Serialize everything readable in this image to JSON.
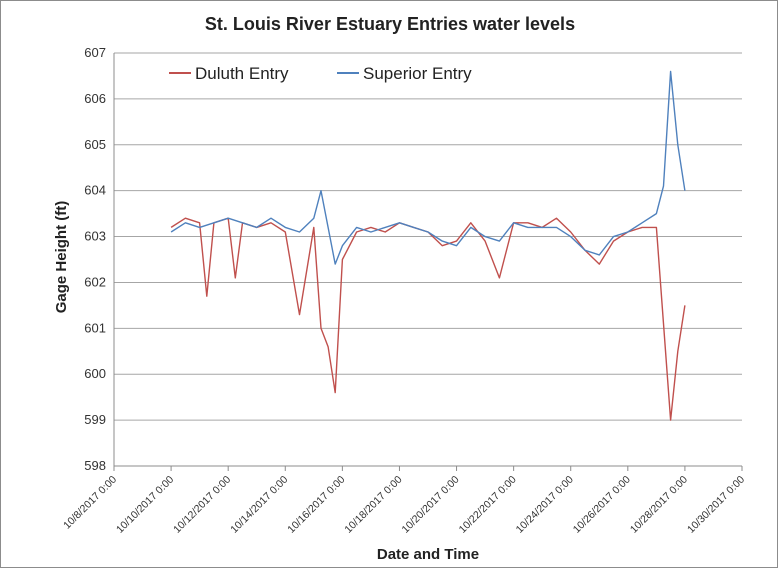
{
  "chart_data": {
    "type": "line",
    "title": "St. Louis River Estuary Entries water levels",
    "xlabel": "Date and Time",
    "ylabel": "Gage Height (ft)",
    "ylim": [
      598,
      607
    ],
    "yticks": [
      598,
      599,
      600,
      601,
      602,
      603,
      604,
      605,
      606,
      607
    ],
    "xlim": [
      "10/8/2017 0:00",
      "10/30/2017 0:00"
    ],
    "xticks": [
      "10/8/2017 0:00",
      "10/10/2017 0:00",
      "10/12/2017 0:00",
      "10/14/2017 0:00",
      "10/16/2017 0:00",
      "10/18/2017 0:00",
      "10/20/2017 0:00",
      "10/22/2017 0:00",
      "10/24/2017 0:00",
      "10/26/2017 0:00",
      "10/28/2017 0:00",
      "10/30/2017 0:00"
    ],
    "grid": "horizontal",
    "legend_position": "top-left",
    "series": [
      {
        "name": "Duluth Entry",
        "color": "#c0504d",
        "x": [
          "10/10/2017 0:00",
          "10/10/2017 12:00",
          "10/11/2017 0:00",
          "10/11/2017 6:00",
          "10/11/2017 12:00",
          "10/12/2017 0:00",
          "10/12/2017 6:00",
          "10/12/2017 12:00",
          "10/13/2017 0:00",
          "10/13/2017 12:00",
          "10/14/2017 0:00",
          "10/14/2017 12:00",
          "10/15/2017 0:00",
          "10/15/2017 6:00",
          "10/15/2017 12:00",
          "10/15/2017 18:00",
          "10/16/2017 0:00",
          "10/16/2017 12:00",
          "10/17/2017 0:00",
          "10/17/2017 12:00",
          "10/18/2017 0:00",
          "10/18/2017 12:00",
          "10/19/2017 0:00",
          "10/19/2017 12:00",
          "10/20/2017 0:00",
          "10/20/2017 12:00",
          "10/21/2017 0:00",
          "10/21/2017 12:00",
          "10/22/2017 0:00",
          "10/22/2017 12:00",
          "10/23/2017 0:00",
          "10/23/2017 12:00",
          "10/24/2017 0:00",
          "10/24/2017 12:00",
          "10/25/2017 0:00",
          "10/25/2017 12:00",
          "10/26/2017 0:00",
          "10/26/2017 12:00",
          "10/27/2017 0:00",
          "10/27/2017 6:00",
          "10/27/2017 12:00",
          "10/27/2017 18:00",
          "10/28/2017 0:00"
        ],
        "values": [
          603.2,
          603.4,
          603.3,
          601.7,
          603.3,
          603.4,
          602.1,
          603.3,
          603.2,
          603.3,
          603.1,
          601.3,
          603.2,
          601.0,
          600.6,
          599.6,
          602.5,
          603.1,
          603.2,
          603.1,
          603.3,
          603.2,
          603.1,
          602.8,
          602.9,
          603.3,
          602.9,
          602.1,
          603.3,
          603.3,
          603.2,
          603.4,
          603.1,
          602.7,
          602.4,
          602.9,
          603.1,
          603.2,
          603.2,
          601.1,
          599.0,
          600.5,
          601.5
        ]
      },
      {
        "name": "Superior Entry",
        "color": "#4f81bd",
        "x": [
          "10/10/2017 0:00",
          "10/10/2017 12:00",
          "10/11/2017 0:00",
          "10/11/2017 12:00",
          "10/12/2017 0:00",
          "10/12/2017 12:00",
          "10/13/2017 0:00",
          "10/13/2017 12:00",
          "10/14/2017 0:00",
          "10/14/2017 12:00",
          "10/15/2017 0:00",
          "10/15/2017 6:00",
          "10/15/2017 12:00",
          "10/15/2017 18:00",
          "10/16/2017 0:00",
          "10/16/2017 12:00",
          "10/17/2017 0:00",
          "10/17/2017 12:00",
          "10/18/2017 0:00",
          "10/18/2017 12:00",
          "10/19/2017 0:00",
          "10/19/2017 12:00",
          "10/20/2017 0:00",
          "10/20/2017 12:00",
          "10/21/2017 0:00",
          "10/21/2017 12:00",
          "10/22/2017 0:00",
          "10/22/2017 12:00",
          "10/23/2017 0:00",
          "10/23/2017 12:00",
          "10/24/2017 0:00",
          "10/24/2017 12:00",
          "10/25/2017 0:00",
          "10/25/2017 12:00",
          "10/26/2017 0:00",
          "10/26/2017 12:00",
          "10/27/2017 0:00",
          "10/27/2017 6:00",
          "10/27/2017 12:00",
          "10/27/2017 18:00",
          "10/28/2017 0:00"
        ],
        "values": [
          603.1,
          603.3,
          603.2,
          603.3,
          603.4,
          603.3,
          603.2,
          603.4,
          603.2,
          603.1,
          603.4,
          604.0,
          603.2,
          602.4,
          602.8,
          603.2,
          603.1,
          603.2,
          603.3,
          603.2,
          603.1,
          602.9,
          602.8,
          603.2,
          603.0,
          602.9,
          603.3,
          603.2,
          603.2,
          603.2,
          603.0,
          602.7,
          602.6,
          603.0,
          603.1,
          603.3,
          603.5,
          604.1,
          606.6,
          605.0,
          604.0
        ]
      }
    ]
  }
}
